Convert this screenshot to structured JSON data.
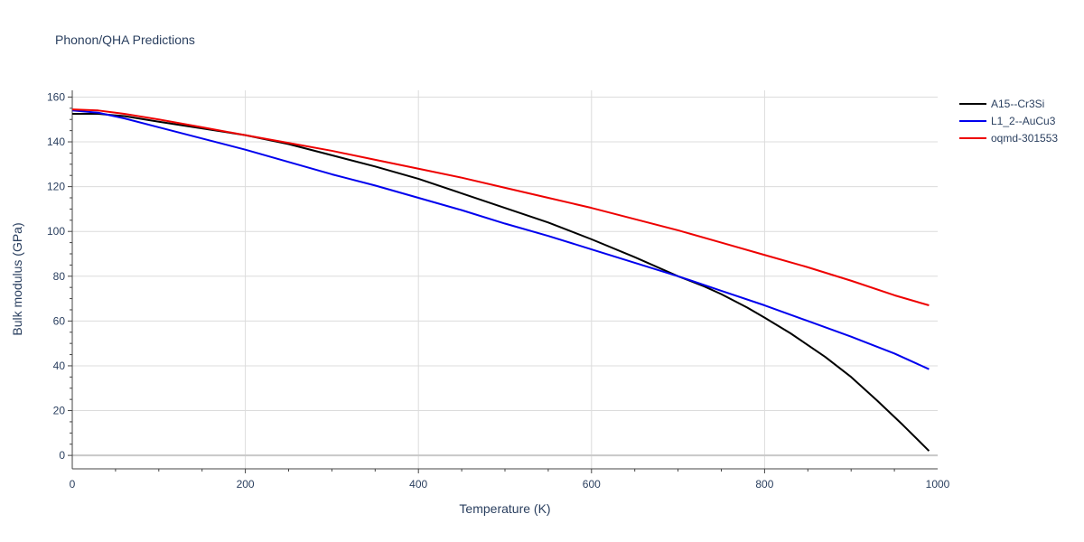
{
  "chart_data": {
    "type": "line",
    "title": "Phonon/QHA Predictions",
    "xlabel": "Temperature (K)",
    "ylabel": "Bulk modulus (GPa)",
    "xlim": [
      0,
      1000
    ],
    "ylim": [
      -6,
      163
    ],
    "xticks": [
      0,
      200,
      400,
      600,
      800,
      1000
    ],
    "yticks": [
      0,
      20,
      40,
      60,
      80,
      100,
      120,
      140,
      160
    ],
    "grid": true,
    "legend_position": "top-right",
    "series": [
      {
        "name": "A15--Cr3Si",
        "color": "#000000",
        "x": [
          0,
          30,
          60,
          100,
          150,
          200,
          250,
          300,
          350,
          400,
          450,
          500,
          550,
          600,
          650,
          700,
          730,
          750,
          780,
          800,
          830,
          870,
          900,
          930,
          960,
          990
        ],
        "y": [
          152.5,
          152.5,
          151.5,
          149,
          146,
          143,
          139,
          134,
          129,
          123.5,
          117,
          110.5,
          104,
          96.5,
          88.5,
          80,
          75.5,
          72,
          66,
          61.5,
          54.5,
          44,
          35,
          24.5,
          13.5,
          2
        ]
      },
      {
        "name": "L1_2--AuCu3",
        "color": "#0000ee",
        "x": [
          0,
          30,
          60,
          100,
          150,
          200,
          250,
          300,
          350,
          400,
          450,
          500,
          550,
          600,
          650,
          700,
          750,
          800,
          850,
          900,
          950,
          990
        ],
        "y": [
          154,
          153,
          150.5,
          146.5,
          141.5,
          136.5,
          131,
          125.5,
          120.5,
          115,
          109.5,
          103.5,
          98,
          92,
          86,
          80,
          73.5,
          67,
          60,
          53,
          45.5,
          38.5
        ]
      },
      {
        "name": "oqmd-301553",
        "color": "#ee0000",
        "x": [
          0,
          30,
          60,
          100,
          150,
          200,
          250,
          300,
          350,
          400,
          450,
          500,
          550,
          600,
          650,
          700,
          750,
          800,
          850,
          900,
          950,
          990
        ],
        "y": [
          154.5,
          154,
          152.5,
          150,
          146.5,
          143,
          139.5,
          136,
          132,
          128,
          124,
          119.5,
          115,
          110.5,
          105.5,
          100.5,
          95,
          89.5,
          84,
          78,
          71.5,
          67
        ]
      }
    ]
  }
}
